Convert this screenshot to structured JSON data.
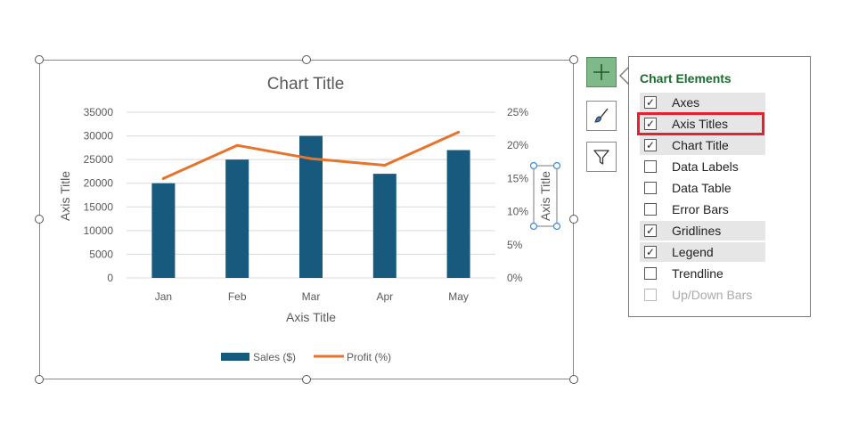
{
  "chart": {
    "title": "Chart Title",
    "x_axis_title": "Axis Title",
    "y_axis_title": "Axis Title",
    "y2_axis_title": "Axis Title"
  },
  "chart_data": {
    "type": "bar",
    "title": "Chart Title",
    "xlabel": "Axis Title",
    "ylabel": "Axis Title",
    "y2label": "Axis Title",
    "categories": [
      "Jan",
      "Feb",
      "Mar",
      "Apr",
      "May"
    ],
    "ylim": [
      0,
      35000
    ],
    "y_ticks": [
      "35000",
      "30000",
      "25000",
      "20000",
      "15000",
      "10000",
      "5000",
      "0"
    ],
    "y2lim": [
      0,
      0.25
    ],
    "y2_ticks": [
      "25%",
      "20%",
      "15%",
      "10%",
      "5%",
      "0%"
    ],
    "grid": true,
    "legend_position": "bottom",
    "series": [
      {
        "name": "Sales ($)",
        "type": "bar",
        "axis": "primary",
        "color": "#175a7e",
        "values": [
          20000,
          25000,
          30000,
          22000,
          27000
        ]
      },
      {
        "name": "Profit (%)",
        "type": "line",
        "axis": "secondary",
        "color": "#e8732a",
        "values": [
          0.15,
          0.2,
          0.18,
          0.17,
          0.22
        ]
      }
    ]
  },
  "side_buttons": [
    {
      "name": "chart-elements-button",
      "icon": "plus-icon",
      "active": true
    },
    {
      "name": "chart-styles-button",
      "icon": "paintbrush-icon",
      "active": false
    },
    {
      "name": "chart-filters-button",
      "icon": "filter-icon",
      "active": false
    }
  ],
  "panel": {
    "title": "Chart Elements",
    "options": [
      {
        "label": "Axes",
        "checked": true,
        "shaded": true,
        "disabled": false
      },
      {
        "label": "Axis Titles",
        "checked": true,
        "shaded": true,
        "disabled": false,
        "highlighted": true
      },
      {
        "label": "Chart Title",
        "checked": true,
        "shaded": true,
        "disabled": false
      },
      {
        "label": "Data Labels",
        "checked": false,
        "shaded": false,
        "disabled": false
      },
      {
        "label": "Data Table",
        "checked": false,
        "shaded": false,
        "disabled": false
      },
      {
        "label": "Error Bars",
        "checked": false,
        "shaded": false,
        "disabled": false
      },
      {
        "label": "Gridlines",
        "checked": true,
        "shaded": true,
        "disabled": false
      },
      {
        "label": "Legend",
        "checked": true,
        "shaded": true,
        "disabled": false
      },
      {
        "label": "Trendline",
        "checked": false,
        "shaded": false,
        "disabled": false
      },
      {
        "label": "Up/Down Bars",
        "checked": false,
        "shaded": false,
        "disabled": true
      }
    ],
    "highlight_color": "#e8202e"
  }
}
